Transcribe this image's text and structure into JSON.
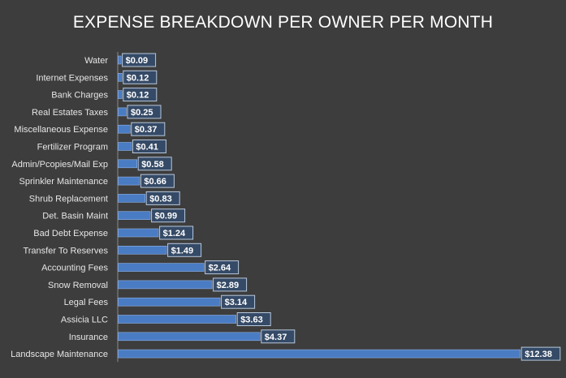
{
  "chart_data": {
    "type": "bar",
    "orientation": "horizontal",
    "title": "EXPENSE BREAKDOWN PER OWNER PER MONTH",
    "xlabel": "",
    "ylabel": "",
    "grid": false,
    "legend": "none",
    "xlim": [
      0,
      12.8
    ],
    "categories": [
      "Water",
      "Internet Expenses",
      "Bank Charges",
      "Real Estates Taxes",
      "Miscellaneous Expense",
      "Fertilizer Program",
      "Admin/Pcopies/Mail Exp",
      "Sprinkler Maintenance",
      "Shrub Replacement",
      "Det. Basin Maint",
      "Bad Debt Expense",
      "Transfer To Reserves",
      "Accounting Fees",
      "Snow Removal",
      "Legal Fees",
      "Assicia LLC",
      "Insurance",
      "Landscape Maintenance"
    ],
    "values": [
      0.09,
      0.12,
      0.12,
      0.25,
      0.37,
      0.41,
      0.58,
      0.66,
      0.83,
      0.99,
      1.24,
      1.49,
      2.64,
      2.89,
      3.14,
      3.63,
      4.37,
      12.38
    ],
    "data_labels": [
      "$0.09",
      "$0.12",
      "$0.12",
      "$0.25",
      "$0.37",
      "$0.41",
      "$0.58",
      "$0.66",
      "$0.83",
      "$0.99",
      "$1.24",
      "$1.49",
      "$2.64",
      "$2.89",
      "$3.14",
      "$3.63",
      "$4.37",
      "$12.38"
    ],
    "colors": {
      "background": "#3d3d3d",
      "bar": "#4a7cc4",
      "bar_border": "#8fb2e3",
      "label_box": "#354a66",
      "label_border": "#b8c8dc",
      "text": "#ffffff",
      "axis_line": "#8a8a8a"
    }
  }
}
